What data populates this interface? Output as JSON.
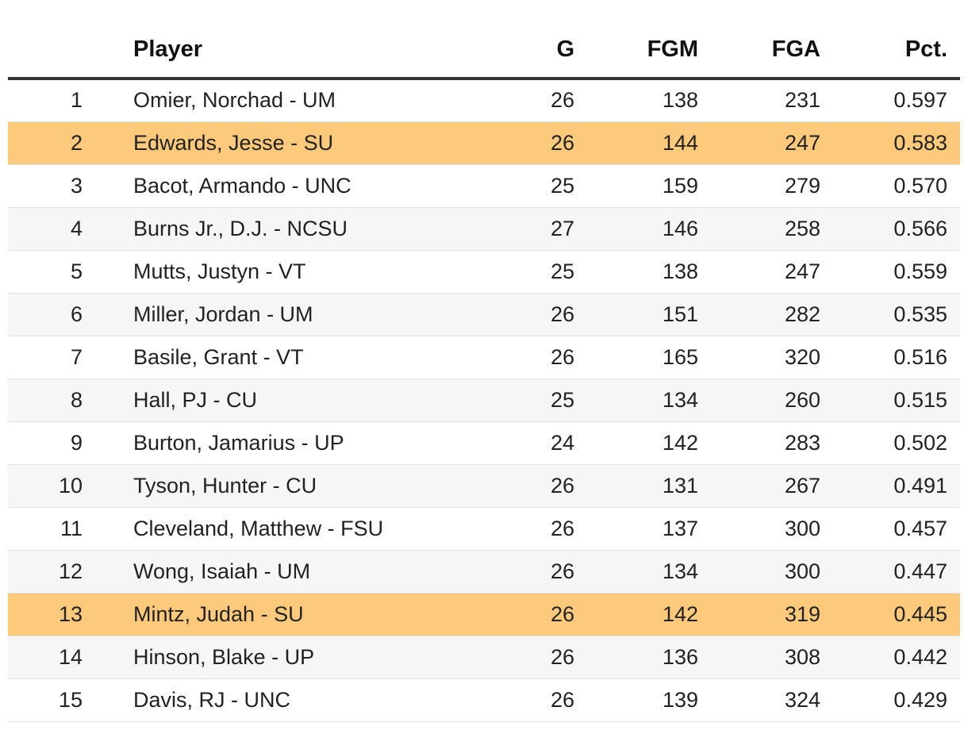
{
  "table": {
    "columns": {
      "rank": "",
      "player": "Player",
      "g": "G",
      "fgm": "FGM",
      "fga": "FGA",
      "pct": "Pct."
    },
    "highlight_color": "#fdc97a",
    "rows": [
      {
        "rank": "1",
        "player": "Omier, Norchad - UM",
        "g": "26",
        "fgm": "138",
        "fga": "231",
        "pct": "0.597",
        "highlighted": false
      },
      {
        "rank": "2",
        "player": "Edwards, Jesse - SU",
        "g": "26",
        "fgm": "144",
        "fga": "247",
        "pct": "0.583",
        "highlighted": true
      },
      {
        "rank": "3",
        "player": "Bacot, Armando - UNC",
        "g": "25",
        "fgm": "159",
        "fga": "279",
        "pct": "0.570",
        "highlighted": false
      },
      {
        "rank": "4",
        "player": "Burns Jr., D.J. - NCSU",
        "g": "27",
        "fgm": "146",
        "fga": "258",
        "pct": "0.566",
        "highlighted": false
      },
      {
        "rank": "5",
        "player": "Mutts, Justyn - VT",
        "g": "25",
        "fgm": "138",
        "fga": "247",
        "pct": "0.559",
        "highlighted": false
      },
      {
        "rank": "6",
        "player": "Miller, Jordan - UM",
        "g": "26",
        "fgm": "151",
        "fga": "282",
        "pct": "0.535",
        "highlighted": false
      },
      {
        "rank": "7",
        "player": "Basile, Grant - VT",
        "g": "26",
        "fgm": "165",
        "fga": "320",
        "pct": "0.516",
        "highlighted": false
      },
      {
        "rank": "8",
        "player": "Hall, PJ - CU",
        "g": "25",
        "fgm": "134",
        "fga": "260",
        "pct": "0.515",
        "highlighted": false
      },
      {
        "rank": "9",
        "player": "Burton, Jamarius - UP",
        "g": "24",
        "fgm": "142",
        "fga": "283",
        "pct": "0.502",
        "highlighted": false
      },
      {
        "rank": "10",
        "player": "Tyson, Hunter - CU",
        "g": "26",
        "fgm": "131",
        "fga": "267",
        "pct": "0.491",
        "highlighted": false
      },
      {
        "rank": "11",
        "player": "Cleveland, Matthew - FSU",
        "g": "26",
        "fgm": "137",
        "fga": "300",
        "pct": "0.457",
        "highlighted": false
      },
      {
        "rank": "12",
        "player": "Wong, Isaiah - UM",
        "g": "26",
        "fgm": "134",
        "fga": "300",
        "pct": "0.447",
        "highlighted": false
      },
      {
        "rank": "13",
        "player": "Mintz, Judah - SU",
        "g": "26",
        "fgm": "142",
        "fga": "319",
        "pct": "0.445",
        "highlighted": true
      },
      {
        "rank": "14",
        "player": "Hinson, Blake - UP",
        "g": "26",
        "fgm": "136",
        "fga": "308",
        "pct": "0.442",
        "highlighted": false
      },
      {
        "rank": "15",
        "player": "Davis, RJ - UNC",
        "g": "26",
        "fgm": "139",
        "fga": "324",
        "pct": "0.429",
        "highlighted": false
      }
    ]
  }
}
